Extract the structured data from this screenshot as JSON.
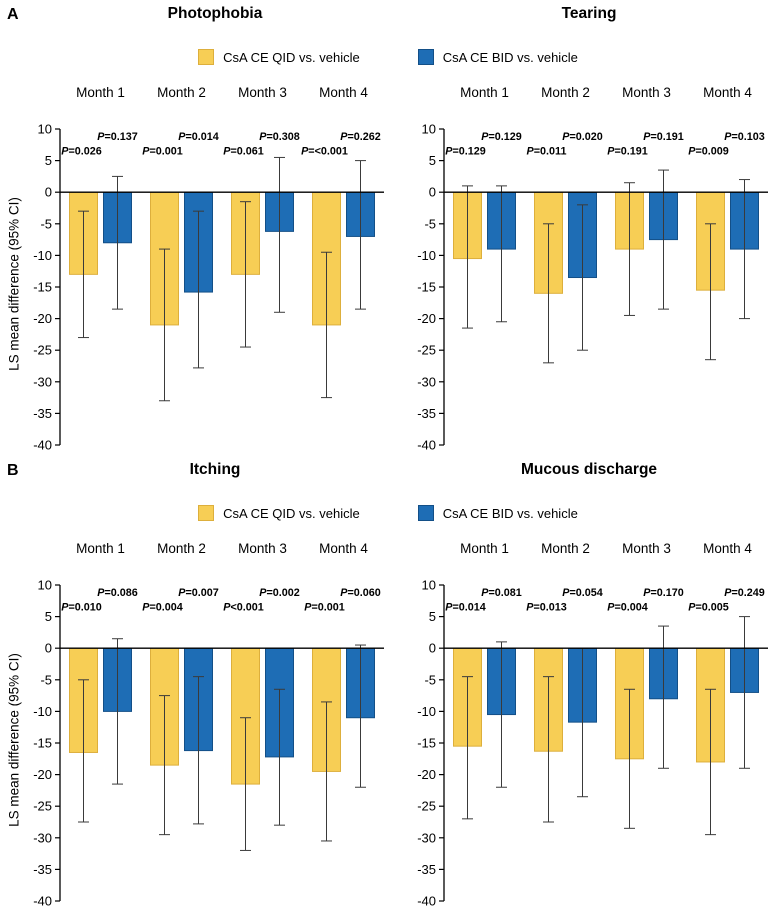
{
  "figure": {
    "panel_labels": [
      "A",
      "B"
    ],
    "ylabel": "LS mean difference (95% CI)",
    "legend": [
      {
        "label": "CsA CE QID vs. vehicle",
        "color": "#F7CE55",
        "edge_color": "#DDAF3C"
      },
      {
        "label": "CsA CE BID vs. vehicle",
        "color": "#1E6DB5",
        "edge_color": "#134F87"
      }
    ]
  },
  "chart_data": [
    {
      "type": "bar",
      "panel": "A",
      "title": "Photophobia",
      "categories": [
        "Month 1",
        "Month 2",
        "Month 3",
        "Month 4"
      ],
      "ylabel": "LS mean difference (95% CI)",
      "ylim": [
        -40,
        10
      ],
      "yticks": [
        10,
        5,
        0,
        -5,
        -10,
        -15,
        -20,
        -25,
        -30,
        -35,
        -40
      ],
      "legend_position": "top",
      "grid": false,
      "series": [
        {
          "name": "CsA CE QID vs. vehicle",
          "color": "#F7CE55",
          "edge_color": "#DDAF3C",
          "values": [
            -13,
            -21,
            -13,
            -21
          ],
          "ci_high": [
            -3,
            -9,
            -1.5,
            -9.5
          ],
          "ci_low": [
            -23,
            -33,
            -24.5,
            -32.5
          ],
          "p_values": [
            "P=0.026",
            "P=0.001",
            "P=0.061",
            "P=<0.001"
          ]
        },
        {
          "name": "CsA CE BID vs. vehicle",
          "color": "#1E6DB5",
          "edge_color": "#134F87",
          "values": [
            -8,
            -15.8,
            -6.2,
            -7
          ],
          "ci_high": [
            2.5,
            -3,
            5.5,
            5
          ],
          "ci_low": [
            -18.5,
            -27.8,
            -19,
            -18.5
          ],
          "p_values": [
            "P=0.137",
            "P=0.014",
            "P=0.308",
            "P=0.262"
          ]
        }
      ]
    },
    {
      "type": "bar",
      "panel": "A",
      "title": "Tearing",
      "categories": [
        "Month 1",
        "Month 2",
        "Month 3",
        "Month 4"
      ],
      "ylabel": "LS mean difference (95% CI)",
      "ylim": [
        -40,
        10
      ],
      "yticks": [
        10,
        5,
        0,
        -5,
        -10,
        -15,
        -20,
        -25,
        -30,
        -35,
        -40
      ],
      "legend_position": "top",
      "grid": false,
      "series": [
        {
          "name": "CsA CE QID vs. vehicle",
          "color": "#F7CE55",
          "edge_color": "#DDAF3C",
          "values": [
            -10.5,
            -16,
            -9,
            -15.5
          ],
          "ci_high": [
            1,
            -5,
            1.5,
            -5
          ],
          "ci_low": [
            -21.5,
            -27,
            -19.5,
            -26.5
          ],
          "p_values": [
            "P=0.129",
            "P=0.011",
            "P=0.191",
            "P=0.009"
          ]
        },
        {
          "name": "CsA CE BID vs. vehicle",
          "color": "#1E6DB5",
          "edge_color": "#134F87",
          "values": [
            -9,
            -13.5,
            -7.5,
            -9
          ],
          "ci_high": [
            1,
            -2,
            3.5,
            2
          ],
          "ci_low": [
            -20.5,
            -25,
            -18.5,
            -20
          ],
          "p_values": [
            "P=0.129",
            "P=0.020",
            "P=0.191",
            "P=0.103"
          ]
        }
      ]
    },
    {
      "type": "bar",
      "panel": "B",
      "title": "Itching",
      "categories": [
        "Month 1",
        "Month 2",
        "Month 3",
        "Month 4"
      ],
      "ylabel": "LS mean difference (95% CI)",
      "ylim": [
        -40,
        10
      ],
      "yticks": [
        10,
        5,
        0,
        -5,
        -10,
        -15,
        -20,
        -25,
        -30,
        -35,
        -40
      ],
      "legend_position": "top",
      "grid": false,
      "series": [
        {
          "name": "CsA CE QID vs. vehicle",
          "color": "#F7CE55",
          "edge_color": "#DDAF3C",
          "values": [
            -16.5,
            -18.5,
            -21.5,
            -19.5
          ],
          "ci_high": [
            -5,
            -7.5,
            -11,
            -8.5
          ],
          "ci_low": [
            -27.5,
            -29.5,
            -32,
            -30.5
          ],
          "p_values": [
            "P=0.010",
            "P=0.004",
            "P<0.001",
            "P=0.001"
          ]
        },
        {
          "name": "CsA CE BID vs. vehicle",
          "color": "#1E6DB5",
          "edge_color": "#134F87",
          "values": [
            -10,
            -16.2,
            -17.2,
            -11
          ],
          "ci_high": [
            1.5,
            -4.5,
            -6.5,
            0.5
          ],
          "ci_low": [
            -21.5,
            -27.8,
            -28,
            -22
          ],
          "p_values": [
            "P=0.086",
            "P=0.007",
            "P=0.002",
            "P=0.060"
          ]
        }
      ]
    },
    {
      "type": "bar",
      "panel": "B",
      "title": "Mucous discharge",
      "categories": [
        "Month 1",
        "Month 2",
        "Month 3",
        "Month 4"
      ],
      "ylabel": "LS mean difference (95% CI)",
      "ylim": [
        -40,
        10
      ],
      "yticks": [
        10,
        5,
        0,
        -5,
        -10,
        -15,
        -20,
        -25,
        -30,
        -35,
        -40
      ],
      "legend_position": "top",
      "grid": false,
      "series": [
        {
          "name": "CsA CE QID vs. vehicle",
          "color": "#F7CE55",
          "edge_color": "#DDAF3C",
          "values": [
            -15.5,
            -16.3,
            -17.5,
            -18
          ],
          "ci_high": [
            -4.5,
            -4.5,
            -6.5,
            -6.5
          ],
          "ci_low": [
            -27,
            -27.5,
            -28.5,
            -29.5
          ],
          "p_values": [
            "P=0.014",
            "P=0.013",
            "P=0.004",
            "P=0.005"
          ]
        },
        {
          "name": "CsA CE BID vs. vehicle",
          "color": "#1E6DB5",
          "edge_color": "#134F87",
          "values": [
            -10.5,
            -11.7,
            -8,
            -7
          ],
          "ci_high": [
            1,
            0,
            3.5,
            5
          ],
          "ci_low": [
            -22,
            -23.5,
            -19,
            -19
          ],
          "p_values": [
            "P=0.081",
            "P=0.054",
            "P=0.170",
            "P=0.249"
          ]
        }
      ]
    }
  ]
}
